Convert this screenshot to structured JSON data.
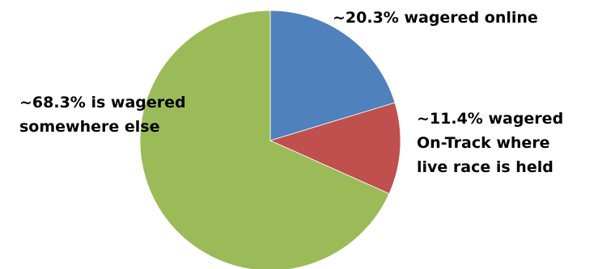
{
  "chart_data": {
    "type": "pie",
    "title": "",
    "slices": [
      {
        "value": 20.3,
        "color": "#4f81bd",
        "label_lines": [
          "~20.3% wagered online"
        ]
      },
      {
        "value": 11.4,
        "color": "#c0504d",
        "label_lines": [
          "~11.4% wagered",
          "On-Track where",
          "live race is held"
        ]
      },
      {
        "value": 68.3,
        "color": "#9bbb59",
        "label_lines": [
          "~68.3% is wagered",
          "somewhere else"
        ]
      }
    ],
    "legend": "none"
  }
}
